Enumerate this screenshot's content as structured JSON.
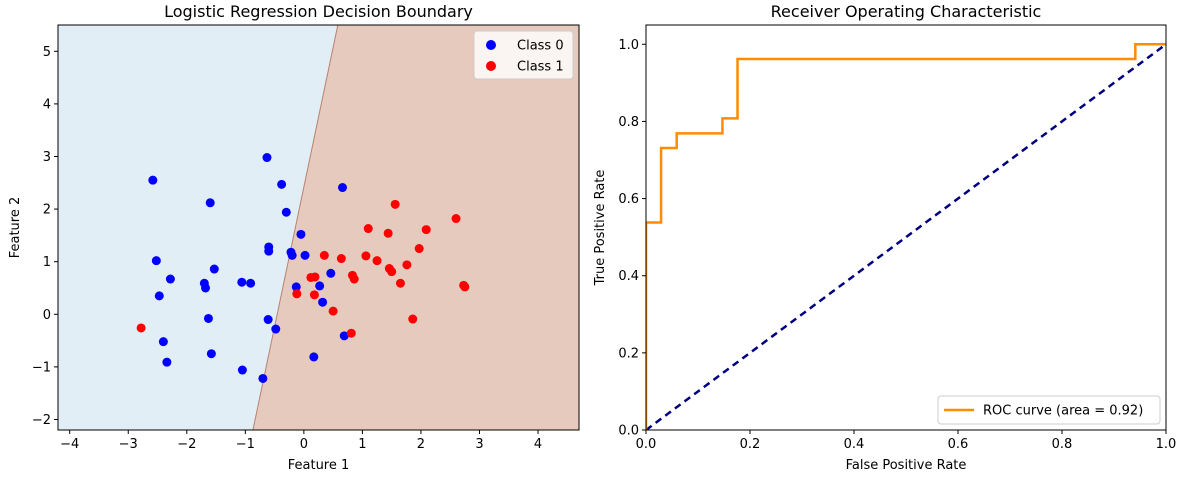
{
  "chart_data": [
    {
      "type": "scatter",
      "title": "Logistic Regression Decision Boundary",
      "xlabel": "Feature 1",
      "ylabel": "Feature 2",
      "xlim": [
        -4.2,
        4.7
      ],
      "ylim": [
        -2.2,
        5.5
      ],
      "xticks": [
        -4,
        -3,
        -2,
        -1,
        0,
        1,
        2,
        3,
        4
      ],
      "xtick_labels": [
        "−4",
        "−3",
        "−2",
        "−1",
        "0",
        "1",
        "2",
        "3",
        "4"
      ],
      "yticks": [
        -2,
        -1,
        0,
        1,
        2,
        3,
        4,
        5
      ],
      "ytick_labels": [
        "−2",
        "−1",
        "0",
        "1",
        "2",
        "3",
        "4",
        "5"
      ],
      "grid": false,
      "legend_position": "upper right",
      "decision_boundary": {
        "line": [
          [
            -0.87,
            -2.2
          ],
          [
            0.58,
            5.5
          ]
        ],
        "class0_region_color": "#e2eef6",
        "class1_region_color": "#e6cabe",
        "edge_color": "#b7826e"
      },
      "series": [
        {
          "name": "Class 0",
          "color": "#0000ff",
          "points": [
            [
              -2.58,
              2.55
            ],
            [
              -2.52,
              1.02
            ],
            [
              -2.47,
              0.35
            ],
            [
              -2.28,
              0.67
            ],
            [
              -1.6,
              2.12
            ],
            [
              -1.53,
              0.86
            ],
            [
              -1.7,
              0.59
            ],
            [
              -1.68,
              0.5
            ],
            [
              -1.63,
              -0.08
            ],
            [
              -1.58,
              -0.75
            ],
            [
              -2.4,
              -0.52
            ],
            [
              -2.34,
              -0.91
            ],
            [
              -1.05,
              -1.06
            ],
            [
              -0.7,
              -1.22
            ],
            [
              -1.06,
              0.61
            ],
            [
              -0.91,
              0.59
            ],
            [
              -0.63,
              2.98
            ],
            [
              -0.38,
              2.47
            ],
            [
              -0.3,
              1.94
            ],
            [
              -0.6,
              1.28
            ],
            [
              -0.6,
              1.2
            ],
            [
              -0.22,
              1.18
            ],
            [
              -0.2,
              1.12
            ],
            [
              -0.05,
              1.52
            ],
            [
              0.02,
              1.12
            ],
            [
              -0.13,
              0.52
            ],
            [
              -0.61,
              -0.1
            ],
            [
              -0.48,
              -0.28
            ],
            [
              0.66,
              2.41
            ],
            [
              0.46,
              0.78
            ],
            [
              0.27,
              0.54
            ],
            [
              0.32,
              0.23
            ],
            [
              0.17,
              -0.81
            ],
            [
              0.69,
              -0.41
            ]
          ]
        },
        {
          "name": "Class 1",
          "color": "#ff0000",
          "points": [
            [
              -2.78,
              -0.26
            ],
            [
              -0.12,
              0.39
            ],
            [
              0.12,
              0.7
            ],
            [
              0.19,
              0.71
            ],
            [
              0.18,
              0.37
            ],
            [
              0.35,
              1.12
            ],
            [
              0.5,
              0.06
            ],
            [
              0.64,
              1.06
            ],
            [
              0.83,
              0.74
            ],
            [
              0.86,
              0.67
            ],
            [
              0.81,
              -0.36
            ],
            [
              1.06,
              1.11
            ],
            [
              1.1,
              1.63
            ],
            [
              1.25,
              1.02
            ],
            [
              1.44,
              1.54
            ],
            [
              1.46,
              0.87
            ],
            [
              1.5,
              0.81
            ],
            [
              1.56,
              2.09
            ],
            [
              1.65,
              0.59
            ],
            [
              1.76,
              0.94
            ],
            [
              1.86,
              -0.09
            ],
            [
              1.97,
              1.25
            ],
            [
              2.09,
              1.61
            ],
            [
              2.6,
              1.82
            ],
            [
              2.73,
              0.55
            ],
            [
              2.75,
              0.52
            ]
          ]
        }
      ]
    },
    {
      "type": "line",
      "title": "Receiver Operating Characteristic",
      "xlabel": "False Positive Rate",
      "ylabel": "True Positive Rate",
      "xlim": [
        0.0,
        1.0
      ],
      "ylim": [
        0.0,
        1.05
      ],
      "xticks": [
        0.0,
        0.2,
        0.4,
        0.6,
        0.8,
        1.0
      ],
      "xtick_labels": [
        "0.0",
        "0.2",
        "0.4",
        "0.6",
        "0.8",
        "1.0"
      ],
      "yticks": [
        0.0,
        0.2,
        0.4,
        0.6,
        0.8,
        1.0
      ],
      "ytick_labels": [
        "0.0",
        "0.2",
        "0.4",
        "0.6",
        "0.8",
        "1.0"
      ],
      "grid": false,
      "legend_position": "lower right",
      "series": [
        {
          "name": "ROC curve (area = 0.92)",
          "color": "#ff8c00",
          "style": "solid",
          "step": true,
          "points": [
            [
              0.0,
              0.0
            ],
            [
              0.0,
              0.538
            ],
            [
              0.029,
              0.538
            ],
            [
              0.029,
              0.731
            ],
            [
              0.059,
              0.731
            ],
            [
              0.059,
              0.769
            ],
            [
              0.147,
              0.769
            ],
            [
              0.147,
              0.808
            ],
            [
              0.176,
              0.808
            ],
            [
              0.176,
              0.962
            ],
            [
              0.941,
              0.962
            ],
            [
              0.941,
              1.0
            ],
            [
              1.0,
              1.0
            ]
          ]
        },
        {
          "color": "#000080",
          "style": "dashed",
          "points": [
            [
              0.0,
              0.0
            ],
            [
              1.0,
              1.0
            ]
          ]
        }
      ]
    }
  ]
}
